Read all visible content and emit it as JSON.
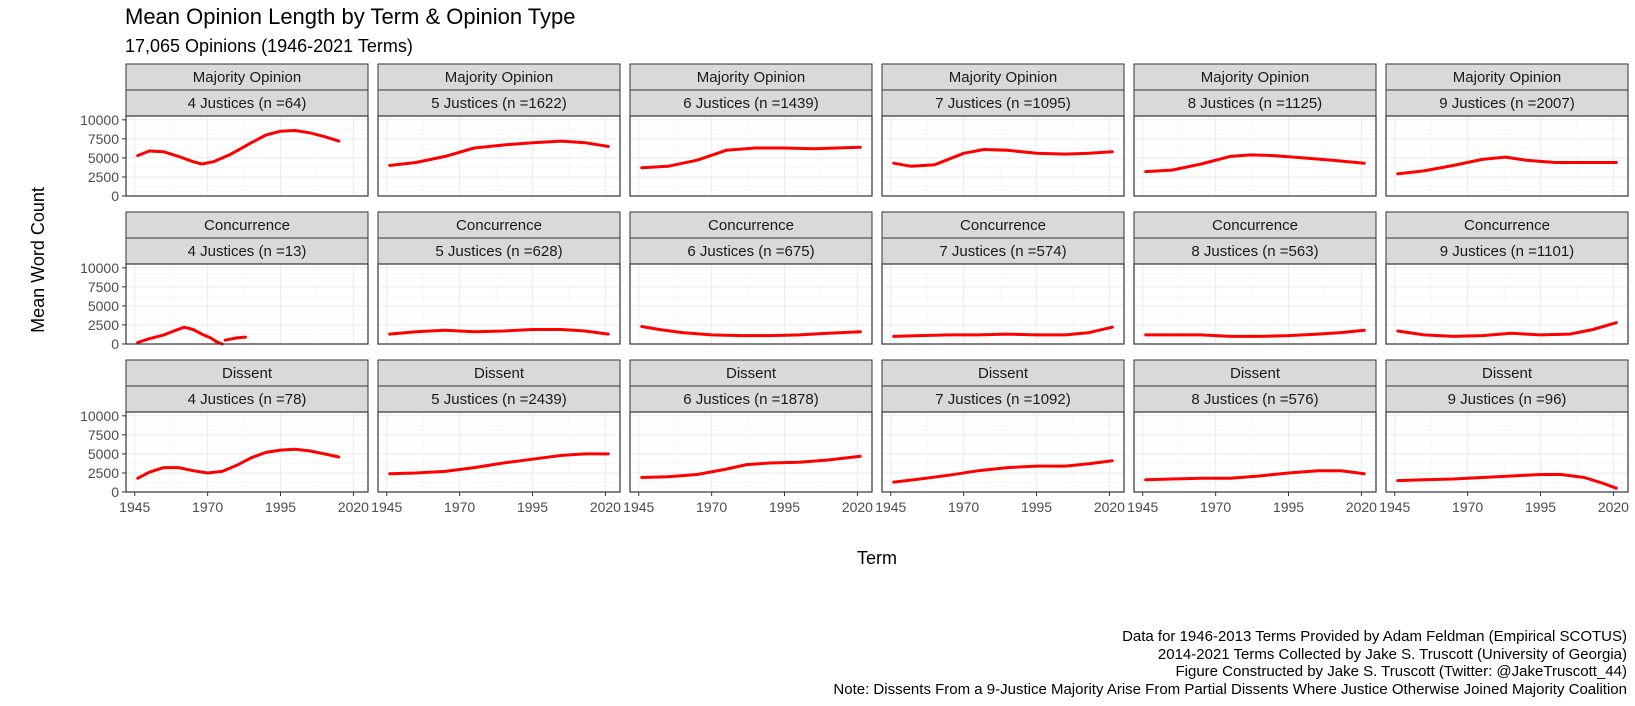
{
  "chart_data": {
    "type": "line",
    "title": "Mean Opinion Length by Term & Opinion Type",
    "subtitle": "17,065 Opinions (1946-2021 Terms)",
    "xlabel": "Term",
    "ylabel": "Mean Word Count",
    "xlim": [
      1942,
      2025
    ],
    "ylim": [
      0,
      10500
    ],
    "x_ticks": [
      1945,
      1970,
      1995,
      2020
    ],
    "y_ticks": [
      0,
      2500,
      5000,
      7500,
      10000
    ],
    "grid": true,
    "series_color": "#ff0000",
    "rows": [
      "Majority Opinion",
      "Concurrence",
      "Dissent"
    ],
    "panels": [
      {
        "row": 0,
        "col": 0,
        "type_label": "Majority Opinion",
        "label": "4 Justices (n =64)",
        "points": [
          [
            1946,
            5300
          ],
          [
            1950,
            5900
          ],
          [
            1955,
            5800
          ],
          [
            1960,
            5200
          ],
          [
            1965,
            4500
          ],
          [
            1968,
            4200
          ],
          [
            1972,
            4500
          ],
          [
            1978,
            5500
          ],
          [
            1985,
            7000
          ],
          [
            1990,
            8000
          ],
          [
            1995,
            8500
          ],
          [
            2000,
            8600
          ],
          [
            2005,
            8300
          ],
          [
            2010,
            7800
          ],
          [
            2015,
            7200
          ]
        ]
      },
      {
        "row": 0,
        "col": 1,
        "type_label": "Majority Opinion",
        "label": "5 Justices (n =1622)",
        "points": [
          [
            1946,
            4000
          ],
          [
            1955,
            4400
          ],
          [
            1965,
            5200
          ],
          [
            1975,
            6300
          ],
          [
            1985,
            6700
          ],
          [
            1995,
            7000
          ],
          [
            2005,
            7200
          ],
          [
            2013,
            7000
          ],
          [
            2021,
            6500
          ]
        ]
      },
      {
        "row": 0,
        "col": 2,
        "type_label": "Majority Opinion",
        "label": "6 Justices (n =1439)",
        "points": [
          [
            1946,
            3700
          ],
          [
            1955,
            3900
          ],
          [
            1965,
            4700
          ],
          [
            1975,
            6000
          ],
          [
            1985,
            6300
          ],
          [
            1995,
            6300
          ],
          [
            2005,
            6200
          ],
          [
            2013,
            6300
          ],
          [
            2021,
            6400
          ]
        ]
      },
      {
        "row": 0,
        "col": 3,
        "type_label": "Majority Opinion",
        "label": "7 Justices (n =1095)",
        "points": [
          [
            1946,
            4300
          ],
          [
            1952,
            3900
          ],
          [
            1960,
            4100
          ],
          [
            1970,
            5600
          ],
          [
            1977,
            6100
          ],
          [
            1985,
            6000
          ],
          [
            1995,
            5600
          ],
          [
            2005,
            5500
          ],
          [
            2013,
            5600
          ],
          [
            2021,
            5800
          ]
        ]
      },
      {
        "row": 0,
        "col": 4,
        "type_label": "Majority Opinion",
        "label": "8 Justices (n =1125)",
        "points": [
          [
            1946,
            3200
          ],
          [
            1955,
            3400
          ],
          [
            1965,
            4200
          ],
          [
            1975,
            5200
          ],
          [
            1982,
            5400
          ],
          [
            1990,
            5300
          ],
          [
            2000,
            5000
          ],
          [
            2010,
            4700
          ],
          [
            2021,
            4300
          ]
        ]
      },
      {
        "row": 0,
        "col": 5,
        "type_label": "Majority Opinion",
        "label": "9 Justices (n =2007)",
        "points": [
          [
            1946,
            2900
          ],
          [
            1955,
            3300
          ],
          [
            1965,
            4000
          ],
          [
            1975,
            4800
          ],
          [
            1983,
            5100
          ],
          [
            1990,
            4700
          ],
          [
            2000,
            4400
          ],
          [
            2010,
            4400
          ],
          [
            2021,
            4400
          ]
        ]
      },
      {
        "row": 1,
        "col": 0,
        "type_label": "Concurrence",
        "label": "4 Justices (n =13)",
        "segments": [
          [
            [
              1946,
              200
            ],
            [
              1950,
              700
            ],
            [
              1955,
              1200
            ],
            [
              1959,
              1800
            ],
            [
              1962,
              2200
            ],
            [
              1965,
              1900
            ],
            [
              1968,
              1300
            ],
            [
              1971,
              800
            ],
            [
              1973,
              300
            ],
            [
              1975,
              0
            ]
          ],
          [
            [
              1976,
              500
            ],
            [
              1980,
              800
            ],
            [
              1983,
              900
            ]
          ]
        ]
      },
      {
        "row": 1,
        "col": 1,
        "type_label": "Concurrence",
        "label": "5 Justices (n =628)",
        "points": [
          [
            1946,
            1300
          ],
          [
            1955,
            1600
          ],
          [
            1965,
            1800
          ],
          [
            1975,
            1600
          ],
          [
            1985,
            1700
          ],
          [
            1995,
            1900
          ],
          [
            2005,
            1900
          ],
          [
            2013,
            1700
          ],
          [
            2021,
            1300
          ]
        ]
      },
      {
        "row": 1,
        "col": 2,
        "type_label": "Concurrence",
        "label": "6 Justices (n =675)",
        "points": [
          [
            1946,
            2300
          ],
          [
            1952,
            1900
          ],
          [
            1960,
            1500
          ],
          [
            1970,
            1200
          ],
          [
            1980,
            1100
          ],
          [
            1990,
            1100
          ],
          [
            2000,
            1200
          ],
          [
            2010,
            1400
          ],
          [
            2021,
            1600
          ]
        ]
      },
      {
        "row": 1,
        "col": 3,
        "type_label": "Concurrence",
        "label": "7 Justices (n =574)",
        "points": [
          [
            1946,
            1000
          ],
          [
            1955,
            1100
          ],
          [
            1965,
            1200
          ],
          [
            1975,
            1200
          ],
          [
            1985,
            1300
          ],
          [
            1995,
            1200
          ],
          [
            2005,
            1200
          ],
          [
            2013,
            1500
          ],
          [
            2021,
            2200
          ]
        ]
      },
      {
        "row": 1,
        "col": 4,
        "type_label": "Concurrence",
        "label": "8 Justices (n =563)",
        "points": [
          [
            1946,
            1200
          ],
          [
            1955,
            1200
          ],
          [
            1965,
            1200
          ],
          [
            1975,
            1000
          ],
          [
            1985,
            1000
          ],
          [
            1995,
            1100
          ],
          [
            2005,
            1300
          ],
          [
            2013,
            1500
          ],
          [
            2021,
            1800
          ]
        ]
      },
      {
        "row": 1,
        "col": 5,
        "type_label": "Concurrence",
        "label": "9 Justices (n =1101)",
        "points": [
          [
            1946,
            1700
          ],
          [
            1955,
            1200
          ],
          [
            1965,
            1000
          ],
          [
            1975,
            1100
          ],
          [
            1985,
            1400
          ],
          [
            1995,
            1200
          ],
          [
            2005,
            1300
          ],
          [
            2013,
            1900
          ],
          [
            2021,
            2800
          ]
        ]
      },
      {
        "row": 2,
        "col": 0,
        "type_label": "Dissent",
        "label": "4 Justices (n =78)",
        "points": [
          [
            1946,
            1800
          ],
          [
            1950,
            2600
          ],
          [
            1955,
            3200
          ],
          [
            1960,
            3200
          ],
          [
            1965,
            2800
          ],
          [
            1970,
            2500
          ],
          [
            1975,
            2700
          ],
          [
            1980,
            3500
          ],
          [
            1985,
            4500
          ],
          [
            1990,
            5200
          ],
          [
            1995,
            5500
          ],
          [
            2000,
            5600
          ],
          [
            2005,
            5400
          ],
          [
            2010,
            5000
          ],
          [
            2015,
            4600
          ]
        ]
      },
      {
        "row": 2,
        "col": 1,
        "type_label": "Dissent",
        "label": "5 Justices (n =2439)",
        "points": [
          [
            1946,
            2400
          ],
          [
            1955,
            2500
          ],
          [
            1965,
            2700
          ],
          [
            1975,
            3200
          ],
          [
            1985,
            3800
          ],
          [
            1995,
            4300
          ],
          [
            2005,
            4800
          ],
          [
            2013,
            5000
          ],
          [
            2021,
            5000
          ]
        ]
      },
      {
        "row": 2,
        "col": 2,
        "type_label": "Dissent",
        "label": "6 Justices (n =1878)",
        "points": [
          [
            1946,
            1900
          ],
          [
            1955,
            2000
          ],
          [
            1965,
            2300
          ],
          [
            1975,
            3000
          ],
          [
            1982,
            3600
          ],
          [
            1990,
            3800
          ],
          [
            2000,
            3900
          ],
          [
            2010,
            4200
          ],
          [
            2021,
            4700
          ]
        ]
      },
      {
        "row": 2,
        "col": 3,
        "type_label": "Dissent",
        "label": "7 Justices (n =1092)",
        "points": [
          [
            1946,
            1300
          ],
          [
            1955,
            1700
          ],
          [
            1965,
            2200
          ],
          [
            1975,
            2800
          ],
          [
            1985,
            3200
          ],
          [
            1995,
            3400
          ],
          [
            2005,
            3400
          ],
          [
            2013,
            3700
          ],
          [
            2021,
            4100
          ]
        ]
      },
      {
        "row": 2,
        "col": 4,
        "type_label": "Dissent",
        "label": "8 Justices (n =576)",
        "points": [
          [
            1946,
            1600
          ],
          [
            1955,
            1700
          ],
          [
            1965,
            1800
          ],
          [
            1975,
            1800
          ],
          [
            1985,
            2100
          ],
          [
            1995,
            2500
          ],
          [
            2005,
            2800
          ],
          [
            2013,
            2800
          ],
          [
            2021,
            2400
          ]
        ]
      },
      {
        "row": 2,
        "col": 5,
        "type_label": "Dissent",
        "label": "9 Justices (n =96)",
        "points": [
          [
            1946,
            1500
          ],
          [
            1955,
            1600
          ],
          [
            1965,
            1700
          ],
          [
            1975,
            1900
          ],
          [
            1985,
            2100
          ],
          [
            1995,
            2300
          ],
          [
            2002,
            2300
          ],
          [
            2010,
            1900
          ],
          [
            2016,
            1200
          ],
          [
            2021,
            500
          ]
        ]
      }
    ]
  },
  "caption": [
    "Data for 1946-2013 Terms Provided by Adam Feldman (Empirical SCOTUS)",
    "2014-2021 Terms Collected by Jake S. Truscott (University of Georgia)",
    "Figure Constructed by Jake S. Truscott (Twitter: @JakeTruscott_44)",
    "Note: Dissents From a 9-Justice Majority Arise From Partial Dissents Where Justice Otherwise Joined Majority Coalition"
  ]
}
